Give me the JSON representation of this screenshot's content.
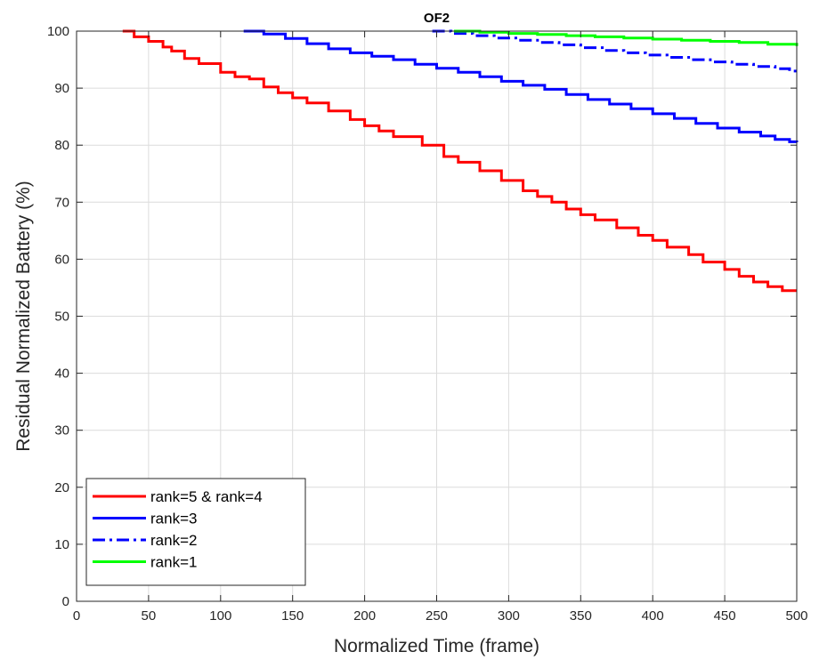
{
  "chart_data": {
    "type": "line",
    "title": "OF2",
    "xlabel": "Normalized Time (frame)",
    "ylabel": "Residual Normalized Battery (%)",
    "xlim": [
      0,
      500
    ],
    "ylim": [
      0,
      100
    ],
    "xticks": [
      0,
      50,
      100,
      150,
      200,
      250,
      300,
      350,
      400,
      450,
      500
    ],
    "yticks": [
      0,
      10,
      20,
      30,
      40,
      50,
      60,
      70,
      80,
      90,
      100
    ],
    "grid": true,
    "legend_position": "bottom-left",
    "series": [
      {
        "name": "rank=5 & rank=4",
        "color": "#ff0000",
        "style": "solid",
        "x": [
          32,
          40,
          50,
          60,
          66,
          75,
          85,
          100,
          110,
          120,
          130,
          140,
          150,
          160,
          175,
          190,
          200,
          210,
          220,
          232,
          240,
          250,
          255,
          265,
          280,
          295,
          310,
          320,
          330,
          340,
          350,
          360,
          375,
          390,
          400,
          410,
          425,
          435,
          450,
          460,
          470,
          480,
          490,
          500
        ],
        "y": [
          100,
          99,
          98.2,
          97.2,
          96.5,
          95.2,
          94.3,
          92.8,
          92.0,
          91.6,
          90.2,
          89.2,
          88.3,
          87.4,
          86.0,
          84.5,
          83.4,
          82.5,
          81.5,
          81.5,
          80.0,
          80.0,
          78.0,
          77.0,
          75.5,
          73.8,
          72.0,
          71.0,
          70.0,
          68.8,
          67.8,
          66.9,
          65.5,
          64.2,
          63.3,
          62.1,
          60.8,
          59.5,
          58.2,
          57.0,
          56.0,
          55.2,
          54.5,
          54.5
        ]
      },
      {
        "name": "rank=3",
        "color": "#0000ff",
        "style": "solid",
        "x": [
          116,
          130,
          145,
          160,
          175,
          190,
          205,
          220,
          235,
          250,
          265,
          280,
          295,
          310,
          325,
          340,
          355,
          370,
          385,
          400,
          415,
          430,
          445,
          460,
          475,
          485,
          495,
          500
        ],
        "y": [
          100,
          99.5,
          98.7,
          97.8,
          96.9,
          96.2,
          95.6,
          95.0,
          94.2,
          93.5,
          92.8,
          92.0,
          91.2,
          90.5,
          89.8,
          88.9,
          88.0,
          87.2,
          86.4,
          85.5,
          84.7,
          83.8,
          83.0,
          82.3,
          81.6,
          81.0,
          80.6,
          80.5
        ]
      },
      {
        "name": "rank=2",
        "color": "#0000ff",
        "style": "dashdot",
        "x": [
          247,
          260,
          275,
          290,
          305,
          320,
          335,
          350,
          365,
          380,
          395,
          410,
          425,
          440,
          455,
          470,
          485,
          495,
          500
        ],
        "y": [
          100,
          99.6,
          99.2,
          98.8,
          98.4,
          98.0,
          97.6,
          97.1,
          96.6,
          96.2,
          95.8,
          95.4,
          95.0,
          94.6,
          94.2,
          93.8,
          93.4,
          93.0,
          92.9
        ]
      },
      {
        "name": "rank=1",
        "color": "#00ff00",
        "style": "solid",
        "x": [
          262,
          280,
          300,
          320,
          340,
          360,
          380,
          400,
          420,
          440,
          460,
          480,
          500
        ],
        "y": [
          100,
          99.8,
          99.6,
          99.4,
          99.2,
          99.0,
          98.8,
          98.6,
          98.4,
          98.2,
          98.0,
          97.7,
          97.4
        ]
      }
    ]
  }
}
